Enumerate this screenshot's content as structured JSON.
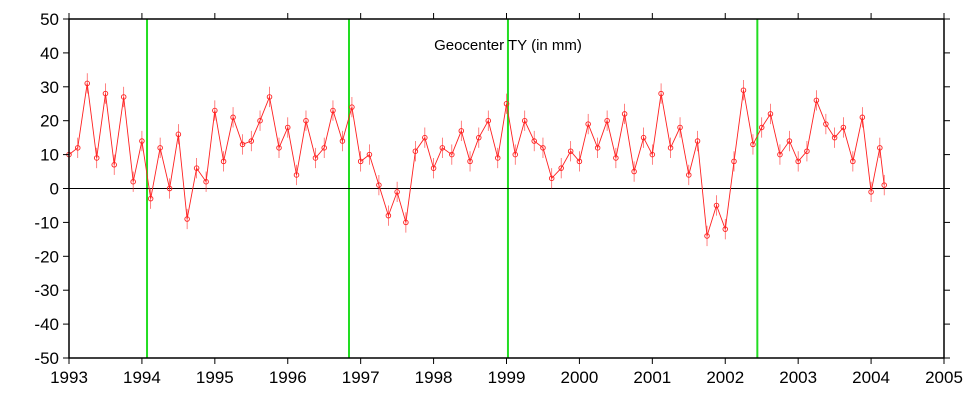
{
  "chart_data": {
    "type": "scatter",
    "title": "Geocenter TY (in mm)",
    "xlabel": "",
    "ylabel": "",
    "xlim": [
      1993,
      2005
    ],
    "ylim": [
      -50,
      50
    ],
    "grid": false,
    "x_ticks": [
      1993,
      1994,
      1995,
      1996,
      1997,
      1998,
      1999,
      2000,
      2001,
      2002,
      2003,
      2004,
      2005
    ],
    "x_tick_labels": [
      "1993",
      "1994",
      "1995",
      "1996",
      "1997",
      "1998",
      "1999",
      "2000",
      "2001",
      "2002",
      "2003",
      "2004",
      "2005"
    ],
    "y_ticks": [
      -50,
      -40,
      -30,
      -20,
      -10,
      0,
      10,
      20,
      30,
      40,
      50
    ],
    "y_tick_labels": [
      "-50",
      "-40",
      "-30",
      "-20",
      "-10",
      "0",
      "10",
      "20",
      "30",
      "40",
      "50"
    ],
    "zero_line": 0,
    "reference_lines_x": [
      1994.07,
      1996.84,
      1999.02,
      2002.44
    ],
    "colors": {
      "series": "#ff2020",
      "reference_lines": "#22dd22",
      "axis": "#000000",
      "background": "#ffffff"
    },
    "error_bar": 3,
    "series": [
      {
        "x": [
          1993.0,
          1993.12,
          1993.25,
          1993.38,
          1993.5,
          1993.62,
          1993.75,
          1993.88,
          1994.0,
          1994.12,
          1994.25,
          1994.38,
          1994.5,
          1994.62,
          1994.75,
          1994.88,
          1995.0,
          1995.12,
          1995.25,
          1995.38,
          1995.5,
          1995.62,
          1995.75,
          1995.88,
          1996.0,
          1996.12,
          1996.25,
          1996.38,
          1996.5,
          1996.62,
          1996.75,
          1996.88,
          1997.0,
          1997.12,
          1997.25,
          1997.38,
          1997.5,
          1997.62,
          1997.75,
          1997.88,
          1998.0,
          1998.12,
          1998.25,
          1998.38,
          1998.5,
          1998.62,
          1998.75,
          1998.88,
          1999.0,
          1999.12,
          1999.25,
          1999.38,
          1999.5,
          1999.62,
          1999.75,
          1999.88,
          2000.0,
          2000.12,
          2000.25,
          2000.38,
          2000.5,
          2000.62,
          2000.75,
          2000.88,
          2001.0,
          2001.12,
          2001.25,
          2001.38,
          2001.5,
          2001.62,
          2001.75,
          2001.88,
          2002.0,
          2002.12,
          2002.25,
          2002.38,
          2002.5,
          2002.62,
          2002.75,
          2002.88,
          2003.0,
          2003.12,
          2003.25,
          2003.38,
          2003.5,
          2003.62,
          2003.75,
          2003.88,
          2004.0,
          2004.12,
          2004.18
        ],
        "y": [
          10,
          12,
          31,
          9,
          28,
          7,
          27,
          2,
          14,
          -3,
          12,
          0,
          16,
          -9,
          6,
          2,
          23,
          8,
          21,
          13,
          14,
          20,
          27,
          12,
          18,
          4,
          20,
          9,
          12,
          23,
          14,
          24,
          8,
          10,
          1,
          -8,
          -1,
          -10,
          11,
          15,
          6,
          12,
          10,
          17,
          8,
          15,
          20,
          9,
          25,
          10,
          20,
          14,
          12,
          3,
          6,
          11,
          8,
          19,
          12,
          20,
          9,
          22,
          5,
          15,
          10,
          28,
          12,
          18,
          4,
          14,
          -14,
          -5,
          -12,
          8,
          29,
          13,
          18,
          22,
          10,
          14,
          8,
          11,
          26,
          19,
          15,
          18,
          8,
          21,
          -1,
          12,
          1
        ]
      }
    ]
  }
}
